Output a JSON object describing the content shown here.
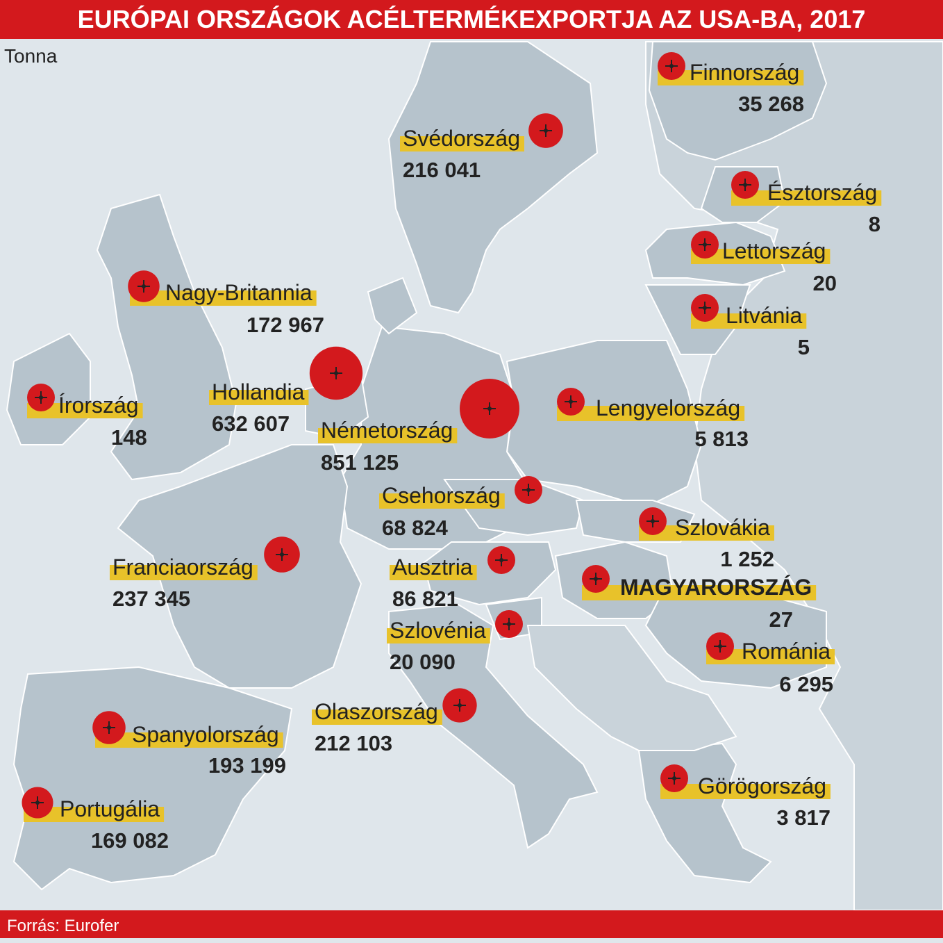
{
  "header": {
    "title": "EURÓPAI ORSZÁGOK ACÉLTERMÉKEXPORTJA AZ USA-BA, 2017",
    "unit": "Tonna"
  },
  "countries": [
    {
      "name": "Finnország",
      "value": 35268,
      "value_label": "35 268"
    },
    {
      "name": "Svédország",
      "value": 216041,
      "value_label": "216 041"
    },
    {
      "name": "Észtország",
      "value": 8,
      "value_label": "8"
    },
    {
      "name": "Lettország",
      "value": 20,
      "value_label": "20"
    },
    {
      "name": "Litvánia",
      "value": 5,
      "value_label": "5"
    },
    {
      "name": "Nagy-Britannia",
      "value": 172967,
      "value_label": "172 967"
    },
    {
      "name": "Írország",
      "value": 148,
      "value_label": "148"
    },
    {
      "name": "Hollandia",
      "value": 632607,
      "value_label": "632 607"
    },
    {
      "name": "Németország",
      "value": 851125,
      "value_label": "851 125"
    },
    {
      "name": "Lengyelország",
      "value": 5813,
      "value_label": "5 813"
    },
    {
      "name": "Csehország",
      "value": 68824,
      "value_label": "68 824"
    },
    {
      "name": "Szlovákia",
      "value": 1252,
      "value_label": "1 252"
    },
    {
      "name": "Franciaország",
      "value": 237345,
      "value_label": "237 345"
    },
    {
      "name": "Ausztria",
      "value": 86821,
      "value_label": "86 821"
    },
    {
      "name": "MAGYARORSZÁG",
      "value": 27,
      "value_label": "27"
    },
    {
      "name": "Szlovénia",
      "value": 20090,
      "value_label": "20 090"
    },
    {
      "name": "Románia",
      "value": 6295,
      "value_label": "6 295"
    },
    {
      "name": "Olaszország",
      "value": 212103,
      "value_label": "212 103"
    },
    {
      "name": "Spanyolország",
      "value": 193199,
      "value_label": "193 199"
    },
    {
      "name": "Görögország",
      "value": 3817,
      "value_label": "3 817"
    },
    {
      "name": "Portugália",
      "value": 169082,
      "value_label": "169 082"
    }
  ],
  "footer": {
    "source": "Forrás: Eurofer"
  }
}
